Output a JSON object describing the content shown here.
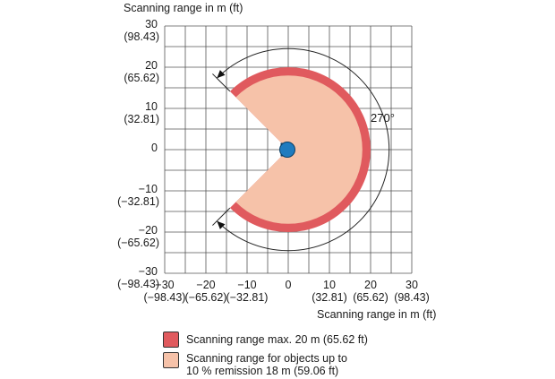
{
  "y_axis_title": "Scanning range in m (ft)",
  "x_axis_title": "Scanning range in m (ft)",
  "angle_label": "270°",
  "y_ticks": [
    {
      "value": 30,
      "label": "30",
      "sub": "(98.43)"
    },
    {
      "value": 20,
      "label": "20",
      "sub": "(65.62)"
    },
    {
      "value": 10,
      "label": "10",
      "sub": "(32.81)"
    },
    {
      "value": 0,
      "label": "0",
      "sub": ""
    },
    {
      "value": -10,
      "label": "−10",
      "sub": "(−32.81)"
    },
    {
      "value": -20,
      "label": "−20",
      "sub": "(−65.62)"
    },
    {
      "value": -30,
      "label": "−30",
      "sub": "(−98.43)"
    }
  ],
  "x_ticks": [
    {
      "value": -30,
      "label": "−30",
      "sub": "(−98.43)"
    },
    {
      "value": -20,
      "label": "−20",
      "sub": "(−65.62)"
    },
    {
      "value": -10,
      "label": "−10",
      "sub": "(−32.81)"
    },
    {
      "value": 0,
      "label": "0",
      "sub": ""
    },
    {
      "value": 10,
      "label": "10",
      "sub": "(32.81)"
    },
    {
      "value": 20,
      "label": "20",
      "sub": "(65.62)"
    },
    {
      "value": 30,
      "label": "30",
      "sub": "(98.43)"
    }
  ],
  "ranges": {
    "max_range_m": 20,
    "remission_range_m": 18,
    "opening_angle_deg": 270
  },
  "colors": {
    "max_range": "#e05a5e",
    "remission_range": "#f6c2a9",
    "sensor": "#1f7bbf",
    "grid": "#555555"
  },
  "legend": [
    {
      "label": "Scanning range max. 20 m (65.62 ft)",
      "color": "#e05a5e"
    },
    {
      "label": "Scanning range for objects up to",
      "label2": "10 % remission 18 m (59.06 ft)",
      "color": "#f6c2a9"
    }
  ]
}
